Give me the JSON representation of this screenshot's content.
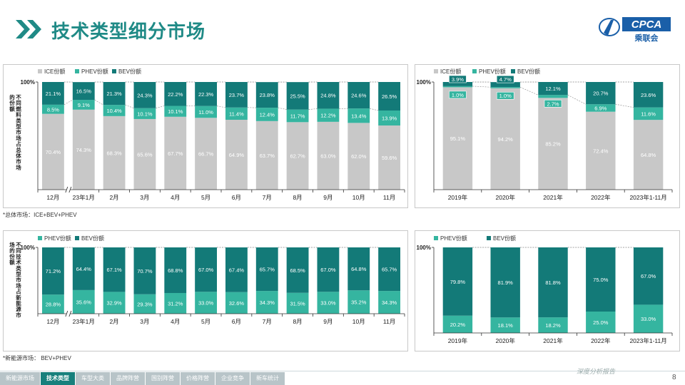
{
  "header": {
    "title": "技术类型细分市场",
    "logo_text": "CPCA",
    "logo_sub": "乘联会"
  },
  "colors": {
    "ice": "#c8c8c8",
    "phev": "#35b5a0",
    "bev": "#137a78",
    "accent": "#1f8a86"
  },
  "notes": {
    "top": "*总体市场：ICE+BEV+PHEV",
    "bottom": "*新能源市场： BEV+PHEV"
  },
  "footer": {
    "nav": [
      "新能源市场",
      "技术类型",
      "车型大类",
      "品牌阵营",
      "国别阵营",
      "价格阵营",
      "企业竞争",
      "新车统计"
    ],
    "active_index": 1,
    "slogan": "深度分析报告",
    "page_number": "8"
  },
  "chart_data": [
    {
      "type": "bar",
      "stacked": "percent",
      "ylabel": "不同燃料类型市场占总体市场的份额",
      "ytick": "100%",
      "legend": [
        "ICE份额",
        "PHEV份额",
        "BEV份额"
      ],
      "categories": [
        "12月",
        "23年1月",
        "2月",
        "3月",
        "4月",
        "5月",
        "6月",
        "7月",
        "8月",
        "9月",
        "10月",
        "11月"
      ],
      "axis_break_after": 0,
      "series": [
        {
          "name": "ICE份额",
          "color": "#c8c8c8",
          "values": [
            70.4,
            74.3,
            68.3,
            65.6,
            67.7,
            66.7,
            64.9,
            63.7,
            62.7,
            63.0,
            62.0,
            59.6
          ],
          "labels": [
            "70.4%",
            "74.3%",
            "68.3%",
            "65.6%",
            "67.7%",
            "66.7%",
            "64.9%",
            "63.7%",
            "62.7%",
            "63.0%",
            "62.0%",
            "59.6%"
          ]
        },
        {
          "name": "PHEV份额",
          "color": "#35b5a0",
          "values": [
            8.5,
            9.1,
            10.4,
            10.1,
            10.1,
            11.0,
            11.4,
            12.4,
            11.7,
            12.2,
            13.4,
            13.9
          ],
          "labels": [
            "8.5%",
            "9.1%",
            "10.4%",
            "10.1%",
            "10.1%",
            "11.0%",
            "11.4%",
            "12.4%",
            "11.7%",
            "12.2%",
            "13.4%",
            "13.9%"
          ]
        },
        {
          "name": "BEV份额",
          "color": "#137a78",
          "values": [
            21.1,
            16.5,
            21.3,
            24.3,
            22.2,
            22.3,
            23.7,
            23.8,
            25.5,
            24.8,
            24.6,
            26.5
          ],
          "labels": [
            "21.1%",
            "16.5%",
            "21.3%",
            "24.3%",
            "22.2%",
            "22.3%",
            "23.7%",
            "23.8%",
            "25.5%",
            "24.8%",
            "24.6%",
            "26.5%"
          ]
        }
      ]
    },
    {
      "type": "bar",
      "stacked": "percent",
      "ytick": "100%",
      "legend": [
        "ICE份额",
        "PHEV份额",
        "BEV份额"
      ],
      "categories": [
        "2019年",
        "2020年",
        "2021年",
        "2022年",
        "2023年1-11月"
      ],
      "series": [
        {
          "name": "ICE份额",
          "color": "#c8c8c8",
          "values": [
            95.1,
            94.2,
            85.2,
            72.4,
            64.8
          ],
          "labels": [
            "95.1%",
            "94.2%",
            "85.2%",
            "72.4%",
            "64.8%"
          ]
        },
        {
          "name": "PHEV份额",
          "color": "#35b5a0",
          "values": [
            1.0,
            1.0,
            2.7,
            6.9,
            11.6
          ],
          "labels": [
            "1.0%",
            "1.0%",
            "2.7%",
            "6.9%",
            "11.6%"
          ]
        },
        {
          "name": "BEV份额",
          "color": "#137a78",
          "values": [
            3.9,
            4.7,
            12.1,
            20.7,
            23.6
          ],
          "labels": [
            "3.9%",
            "4.7%",
            "12.1%",
            "20.7%",
            "23.6%"
          ]
        }
      ]
    },
    {
      "type": "bar",
      "stacked": "percent",
      "ylabel": "不同技术类型市场占新能源市场的份额",
      "ytick": "100%",
      "legend": [
        "PHEV份额",
        "BEV份额"
      ],
      "categories": [
        "12月",
        "23年1月",
        "2月",
        "3月",
        "4月",
        "5月",
        "6月",
        "7月",
        "8月",
        "9月",
        "10月",
        "11月"
      ],
      "axis_break_after": 0,
      "series": [
        {
          "name": "PHEV份额",
          "color": "#35b5a0",
          "values": [
            28.8,
            35.6,
            32.9,
            29.3,
            31.2,
            33.0,
            32.6,
            34.3,
            31.5,
            33.0,
            35.2,
            34.3
          ],
          "labels": [
            "28.8%",
            "35.6%",
            "32.9%",
            "29.3%",
            "31.2%",
            "33.0%",
            "32.6%",
            "34.3%",
            "31.5%",
            "33.0%",
            "35.2%",
            "34.3%"
          ]
        },
        {
          "name": "BEV份额",
          "color": "#137a78",
          "values": [
            71.2,
            64.4,
            67.1,
            70.7,
            68.8,
            67.0,
            67.4,
            65.7,
            68.5,
            67.0,
            64.8,
            65.7
          ],
          "labels": [
            "71.2%",
            "64.4%",
            "67.1%",
            "70.7%",
            "68.8%",
            "67.0%",
            "67.4%",
            "65.7%",
            "68.5%",
            "67.0%",
            "64.8%",
            "65.7%"
          ]
        }
      ]
    },
    {
      "type": "bar",
      "stacked": "percent",
      "ytick": "100%",
      "legend": [
        "PHEV份额",
        "BEV份额"
      ],
      "categories": [
        "2019年",
        "2020年",
        "2021年",
        "2022年",
        "2023年1-11月"
      ],
      "series": [
        {
          "name": "PHEV份额",
          "color": "#35b5a0",
          "values": [
            20.2,
            18.1,
            18.2,
            25.0,
            33.0
          ],
          "labels": [
            "20.2%",
            "18.1%",
            "18.2%",
            "25.0%",
            "33.0%"
          ]
        },
        {
          "name": "BEV份额",
          "color": "#137a78",
          "values": [
            79.8,
            81.9,
            81.8,
            75.0,
            67.0
          ],
          "labels": [
            "79.8%",
            "81.9%",
            "81.8%",
            "75.0%",
            "67.0%"
          ]
        }
      ]
    }
  ]
}
